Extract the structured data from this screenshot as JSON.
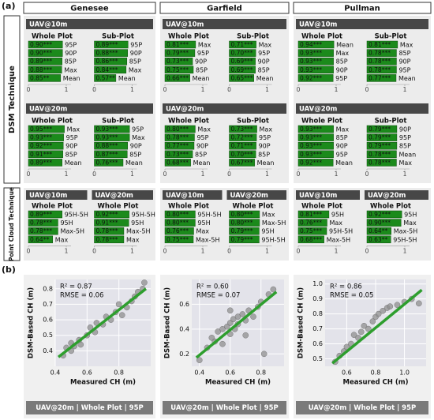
{
  "panel_labels": [
    "(a)",
    "(b)"
  ],
  "row_labels": [
    "DSM Technique",
    "Point Cloud Technique"
  ],
  "bar_color": "#1b8a1b",
  "columns": [
    {
      "name": "Genesee",
      "dsm": [
        {
          "title": "UAV@10m",
          "plots": [
            {
              "type": "bar",
              "title": "Whole Plot",
              "categories": [
                "95P",
                "90P",
                "85P",
                "Max",
                "Mean"
              ],
              "values": [
                0.9,
                0.9,
                0.89,
                0.88,
                0.85
              ],
              "value_labels": [
                "0.90***",
                "0.90***",
                "0.89***",
                "0.88***",
                "0.85**"
              ],
              "xlim": [
                0,
                1
              ],
              "xticks": [
                0,
                1
              ]
            },
            {
              "type": "bar",
              "title": "Sub-Plot",
              "categories": [
                "95P",
                "90P",
                "85P",
                "Max",
                "Mean"
              ],
              "values": [
                0.89,
                0.88,
                0.86,
                0.84,
                0.57
              ],
              "value_labels": [
                "0.89***",
                "0.88***",
                "0.86***",
                "0.84***",
                "0.57**"
              ],
              "xlim": [
                0,
                1
              ],
              "xticks": [
                0,
                1
              ]
            }
          ]
        },
        {
          "title": "UAV@20m",
          "plots": [
            {
              "type": "bar",
              "title": "Whole Plot",
              "categories": [
                "Max",
                "95P",
                "90P",
                "85P",
                "Mean"
              ],
              "values": [
                0.95,
                0.93,
                0.92,
                0.91,
                0.89
              ],
              "value_labels": [
                "0.95***",
                "0.93***",
                "0.92***",
                "0.91***",
                "0.89***"
              ],
              "xlim": [
                0,
                1
              ],
              "xticks": [
                0,
                1
              ]
            },
            {
              "type": "bar",
              "title": "Sub-Plot",
              "categories": [
                "95P",
                "Max",
                "90P",
                "85P",
                "Mean"
              ],
              "values": [
                0.93,
                0.93,
                0.88,
                0.87,
                0.76
              ],
              "value_labels": [
                "0.93***",
                "0.93***",
                "0.88***",
                "0.87***",
                "0.76***"
              ],
              "xlim": [
                0,
                1
              ],
              "xticks": [
                0,
                1
              ]
            }
          ]
        }
      ],
      "point_cloud": [
        {
          "title": "UAV@10m",
          "plots": [
            {
              "type": "bar",
              "title": "Whole Plot",
              "categories": [
                "95H-5H",
                "95H",
                "Max-5H",
                "Max"
              ],
              "values": [
                0.89,
                0.78,
                0.78,
                0.64
              ],
              "value_labels": [
                "0.89***",
                "0.78***",
                "0.78***",
                "0.64**"
              ],
              "xlim": [
                0,
                1
              ],
              "xticks": [
                0,
                1
              ]
            }
          ]
        },
        {
          "title": "UAV@20m",
          "plots": [
            {
              "type": "bar",
              "title": "Whole Plot",
              "categories": [
                "95H-5H",
                "95H",
                "Max-5H",
                "Max"
              ],
              "values": [
                0.92,
                0.91,
                0.78,
                0.78
              ],
              "value_labels": [
                "0.92***",
                "0.91***",
                "0.78***",
                "0.78***"
              ],
              "xlim": [
                0,
                1
              ],
              "xticks": [
                0,
                1
              ]
            }
          ]
        }
      ]
    },
    {
      "name": "Garfield",
      "dsm": [
        {
          "title": "UAV@10m",
          "plots": [
            {
              "type": "bar",
              "title": "Whole Plot",
              "categories": [
                "Max",
                "95P",
                "90P",
                "85P",
                "Mean"
              ],
              "values": [
                0.81,
                0.79,
                0.73,
                0.75,
                0.66
              ],
              "value_labels": [
                "0.81***",
                "0.79***",
                "0.73***",
                "0.75***",
                "0.66***"
              ],
              "xlim": [
                0,
                1
              ],
              "xticks": [
                0,
                1
              ]
            },
            {
              "type": "bar",
              "title": "Sub-Plot",
              "categories": [
                "Max",
                "95P",
                "90P",
                "85P",
                "Mean"
              ],
              "values": [
                0.71,
                0.7,
                0.69,
                0.69,
                0.65
              ],
              "value_labels": [
                "0.71***",
                "0.70***",
                "0.69***",
                "0.69***",
                "0.65***"
              ],
              "xlim": [
                0,
                1
              ],
              "xticks": [
                0,
                1
              ]
            }
          ]
        },
        {
          "title": "UAV@20m",
          "plots": [
            {
              "type": "bar",
              "title": "Whole Plot",
              "categories": [
                "Max",
                "95P",
                "90P",
                "85P",
                "Mean"
              ],
              "values": [
                0.8,
                0.78,
                0.77,
                0.73,
                0.68
              ],
              "value_labels": [
                "0.80***",
                "0.78***",
                "0.77***",
                "0.73***",
                "0.68***"
              ],
              "xlim": [
                0,
                1
              ],
              "xticks": [
                0,
                1
              ]
            },
            {
              "type": "bar",
              "title": "Sub-Plot",
              "categories": [
                "Max",
                "95P",
                "90P",
                "85P",
                "Mean"
              ],
              "values": [
                0.73,
                0.72,
                0.71,
                0.7,
                0.67
              ],
              "value_labels": [
                "0.73***",
                "0.72***",
                "0.71***",
                "0.70***",
                "0.67***"
              ],
              "xlim": [
                0,
                1
              ],
              "xticks": [
                0,
                1
              ]
            }
          ]
        }
      ],
      "point_cloud": [
        {
          "title": "UAV@10m",
          "plots": [
            {
              "type": "bar",
              "title": "Whole Plot",
              "categories": [
                "95H-5H",
                "95H",
                "Max",
                "Max-5H"
              ],
              "values": [
                0.8,
                0.8,
                0.76,
                0.75
              ],
              "value_labels": [
                "0.80***",
                "0.80***",
                "0.76***",
                "0.75***"
              ],
              "xlim": [
                0,
                1
              ],
              "xticks": [
                0,
                1
              ]
            }
          ]
        },
        {
          "title": "UAV@20m",
          "plots": [
            {
              "type": "bar",
              "title": "Whole Plot",
              "categories": [
                "Max",
                "Max-5H",
                "95H",
                "95H-5H"
              ],
              "values": [
                0.8,
                0.8,
                0.79,
                0.79
              ],
              "value_labels": [
                "0.80***",
                "0.80***",
                "0.79***",
                "0.79***"
              ],
              "xlim": [
                0,
                1
              ],
              "xticks": [
                0,
                1
              ]
            }
          ]
        }
      ]
    },
    {
      "name": "Pullman",
      "dsm": [
        {
          "title": "UAV@10m",
          "plots": [
            {
              "type": "bar",
              "title": "Whole Plot",
              "categories": [
                "Mean",
                "Max",
                "85P",
                "90P",
                "95P"
              ],
              "values": [
                0.94,
                0.93,
                0.93,
                0.93,
                0.92
              ],
              "value_labels": [
                "0.94***",
                "0.93***",
                "0.93***",
                "0.93***",
                "0.92***"
              ],
              "xlim": [
                0,
                1
              ],
              "xticks": [
                0,
                1
              ]
            },
            {
              "type": "bar",
              "title": "Sub-Plot",
              "categories": [
                "Max",
                "85P",
                "90P",
                "95P",
                "Mean"
              ],
              "values": [
                0.81,
                0.78,
                0.78,
                0.78,
                0.77
              ],
              "value_labels": [
                "0.81***",
                "0.78***",
                "0.78***",
                "0.78***",
                "0.77***"
              ],
              "xlim": [
                0,
                1
              ],
              "xticks": [
                0,
                1
              ]
            }
          ]
        },
        {
          "title": "UAV@20m",
          "plots": [
            {
              "type": "bar",
              "title": "Whole Plot",
              "categories": [
                "Max",
                "85P",
                "90P",
                "95P",
                "Mean"
              ],
              "values": [
                0.93,
                0.93,
                0.93,
                0.93,
                0.92
              ],
              "value_labels": [
                "0.93***",
                "0.93***",
                "0.93***",
                "0.93***",
                "0.92***"
              ],
              "xlim": [
                0,
                1
              ],
              "xticks": [
                0,
                1
              ]
            },
            {
              "type": "bar",
              "title": "Sub-Plot",
              "categories": [
                "90P",
                "95P",
                "85P",
                "Mean",
                "Max"
              ],
              "values": [
                0.79,
                0.79,
                0.79,
                0.78,
                0.78
              ],
              "value_labels": [
                "0.79***",
                "0.79***",
                "0.79***",
                "0.78***",
                "0.78***"
              ],
              "xlim": [
                0,
                1
              ],
              "xticks": [
                0,
                1
              ]
            }
          ]
        }
      ],
      "point_cloud": [
        {
          "title": "UAV@10m",
          "plots": [
            {
              "type": "bar",
              "title": "Whole Plot",
              "categories": [
                "95H",
                "Max",
                "95H-5H",
                "Max-5H"
              ],
              "values": [
                0.81,
                0.76,
                0.75,
                0.68
              ],
              "value_labels": [
                "0.81***",
                "0.76***",
                "0.75***",
                "0.68***"
              ],
              "xlim": [
                0,
                1
              ],
              "xticks": [
                0,
                1
              ]
            }
          ]
        },
        {
          "title": "UAV@20m",
          "plots": [
            {
              "type": "bar",
              "title": "Whole Plot",
              "categories": [
                "95H",
                "Max",
                "Max-5H",
                "95H-5H"
              ],
              "values": [
                0.92,
                0.9,
                0.64,
                0.63
              ],
              "value_labels": [
                "0.92***",
                "0.90***",
                "0.64**",
                "0.63**"
              ],
              "xlim": [
                0,
                1
              ],
              "xticks": [
                0,
                1
              ]
            }
          ]
        }
      ]
    }
  ],
  "chart_data": [
    {
      "type": "scatter",
      "color": "#8f8f8f",
      "fit_color": "#2e9e2e",
      "annotations": [
        "R² = 0.87",
        "RMSE = 0.06"
      ],
      "xlabel": "Measured CH (m)",
      "ylabel": "DSM-Based CH (m)",
      "caption": "UAV@20m | Whole Plot | 95P",
      "xlim": [
        0.4,
        1.0
      ],
      "ylim": [
        0.3,
        0.86
      ],
      "xticks": [
        0.4,
        0.6,
        0.8
      ],
      "yticks": [
        0.4,
        0.5,
        0.6,
        0.7,
        0.8
      ],
      "x": [
        0.45,
        0.47,
        0.5,
        0.5,
        0.52,
        0.55,
        0.56,
        0.6,
        0.62,
        0.65,
        0.66,
        0.7,
        0.72,
        0.75,
        0.78,
        0.8,
        0.82,
        0.85,
        0.88,
        0.9,
        0.92,
        0.95,
        0.96
      ],
      "y": [
        0.37,
        0.42,
        0.4,
        0.45,
        0.43,
        0.47,
        0.44,
        0.5,
        0.55,
        0.52,
        0.58,
        0.57,
        0.62,
        0.6,
        0.65,
        0.7,
        0.63,
        0.68,
        0.72,
        0.75,
        0.78,
        0.8,
        0.84
      ],
      "fit": {
        "x": [
          0.42,
          0.97
        ],
        "y": [
          0.36,
          0.8
        ]
      }
    },
    {
      "type": "scatter",
      "color": "#8f8f8f",
      "fit_color": "#2e9e2e",
      "annotations": [
        "R² = 0.60",
        "RMSE = 0.07"
      ],
      "xlabel": "Measured CH (m)",
      "ylabel": "DSM-Based CH (m)",
      "caption": "UAV@20m | Whole Plot | 95P",
      "xlim": [
        0.35,
        0.95
      ],
      "ylim": [
        0.1,
        0.8
      ],
      "xticks": [
        0.4,
        0.6,
        0.8
      ],
      "yticks": [
        0.2,
        0.4,
        0.6
      ],
      "x": [
        0.4,
        0.45,
        0.48,
        0.5,
        0.52,
        0.55,
        0.55,
        0.58,
        0.6,
        0.6,
        0.62,
        0.63,
        0.65,
        0.65,
        0.68,
        0.7,
        0.72,
        0.75,
        0.78,
        0.8,
        0.82,
        0.85,
        0.88,
        0.6,
        0.7
      ],
      "y": [
        0.15,
        0.25,
        0.33,
        0.3,
        0.38,
        0.4,
        0.28,
        0.42,
        0.45,
        0.36,
        0.48,
        0.4,
        0.5,
        0.44,
        0.52,
        0.47,
        0.55,
        0.5,
        0.58,
        0.62,
        0.2,
        0.68,
        0.72,
        0.55,
        0.35
      ],
      "fit": {
        "x": [
          0.38,
          0.9
        ],
        "y": [
          0.17,
          0.7
        ]
      }
    },
    {
      "type": "scatter",
      "color": "#8f8f8f",
      "fit_color": "#2e9e2e",
      "annotations": [
        "R² = 0.86",
        "RMSE = 0.05"
      ],
      "xlabel": "Measured CH (m)",
      "ylabel": "DSM-Based CH (m)",
      "caption": "UAV@20m | Whole Plot | 95P",
      "xlim": [
        0.45,
        1.15
      ],
      "ylim": [
        0.45,
        1.03
      ],
      "xticks": [
        0.6,
        0.8,
        {
          "value": 1,
          "label": "1.0"
        }
      ],
      "yticks": [
        0.5,
        0.6,
        0.7,
        0.8,
        0.9,
        {
          "value": 1,
          "label": "1.0"
        }
      ],
      "x": [
        0.52,
        0.55,
        0.58,
        0.6,
        0.63,
        0.65,
        0.68,
        0.7,
        0.72,
        0.75,
        0.78,
        0.8,
        0.82,
        0.85,
        0.88,
        0.9,
        0.95,
        1.0,
        1.05,
        1.1
      ],
      "y": [
        0.48,
        0.52,
        0.55,
        0.58,
        0.6,
        0.66,
        0.64,
        0.68,
        0.72,
        0.7,
        0.75,
        0.78,
        0.8,
        0.82,
        0.84,
        0.85,
        0.86,
        0.88,
        0.9,
        0.87
      ],
      "fit": {
        "x": [
          0.5,
          1.12
        ],
        "y": [
          0.47,
          0.96
        ]
      }
    }
  ]
}
